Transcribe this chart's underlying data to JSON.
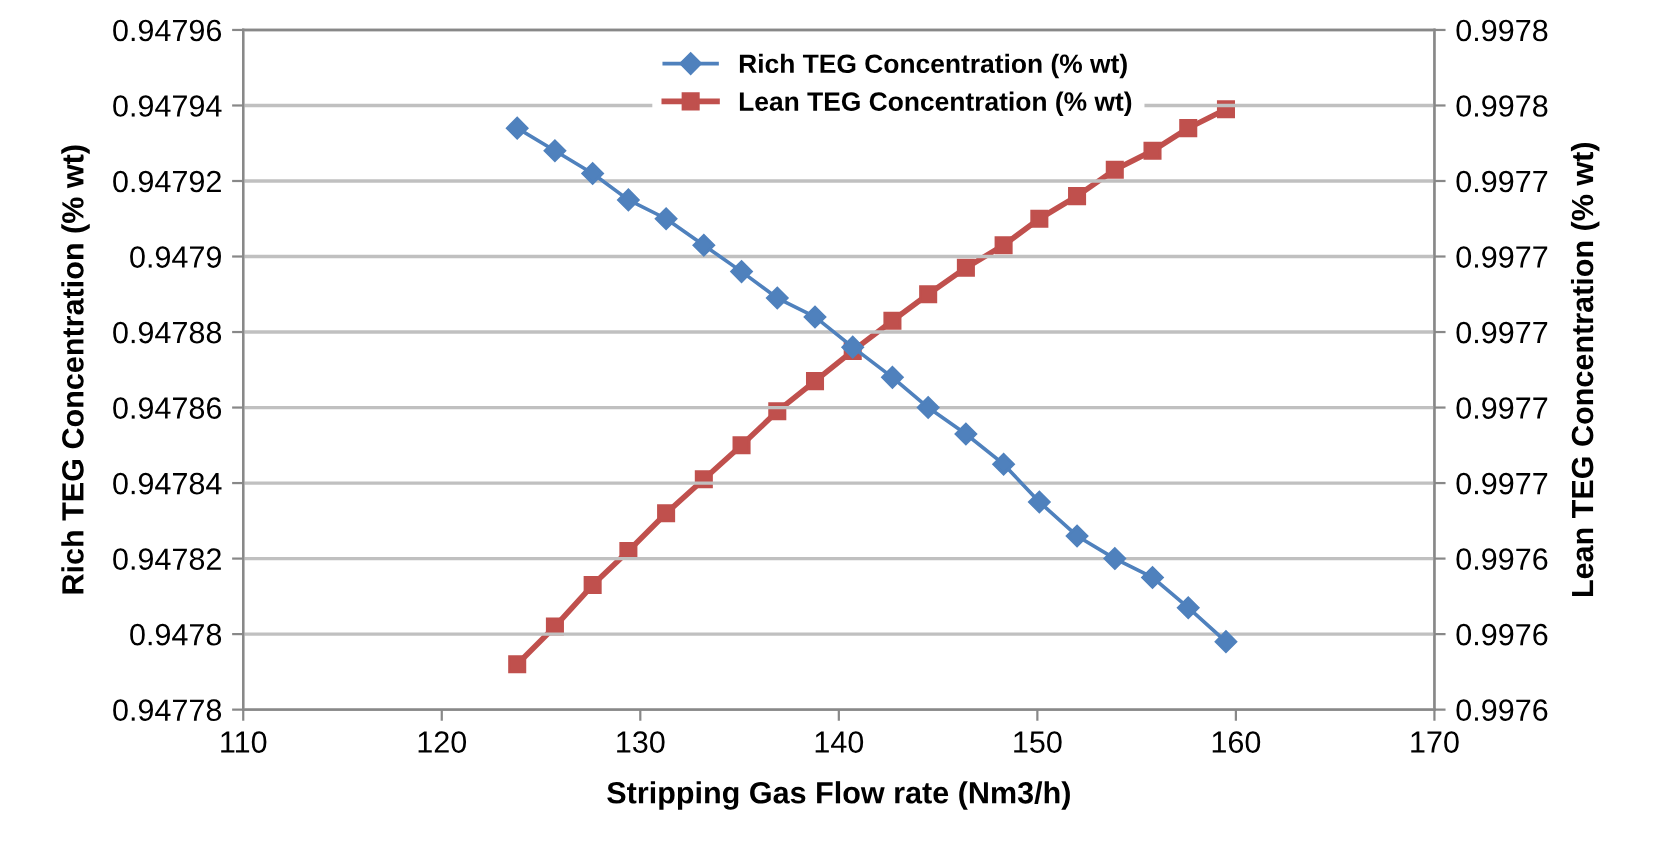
{
  "chart_data": {
    "type": "line",
    "xlabel": "Stripping Gas Flow rate (Nm3/h)",
    "ylabel": "Rich TEG Concentration (% wt)",
    "y2label": "Lean TEG Concentration (% wt)",
    "xlim": [
      110,
      170
    ],
    "xticks": [
      110,
      120,
      130,
      140,
      150,
      160,
      170
    ],
    "ylim": [
      0.94778,
      0.94796
    ],
    "yticks": [
      0.94778,
      0.9478,
      0.94782,
      0.94784,
      0.94786,
      0.94788,
      0.9479,
      0.94792,
      0.94794,
      0.94796
    ],
    "y2lim": [
      0.9976,
      0.99778
    ],
    "y2ticks": [
      {
        "value": 0.9976,
        "label": "0.9976"
      },
      {
        "value": 0.99762,
        "label": "0.9976"
      },
      {
        "value": 0.99764,
        "label": "0.9976"
      },
      {
        "value": 0.99766,
        "label": "0.9977"
      },
      {
        "value": 0.99768,
        "label": "0.9977"
      },
      {
        "value": 0.9977,
        "label": "0.9977"
      },
      {
        "value": 0.99772,
        "label": "0.9977"
      },
      {
        "value": 0.99774,
        "label": "0.9977"
      },
      {
        "value": 0.99776,
        "label": "0.9978"
      },
      {
        "value": 0.99778,
        "label": "0.9978"
      }
    ],
    "grid": "y",
    "legend": "top",
    "x": [
      123.8,
      125.7,
      127.6,
      129.4,
      131.3,
      133.2,
      135.1,
      136.9,
      138.8,
      140.7,
      142.7,
      144.5,
      146.4,
      148.3,
      150.1,
      152.0,
      153.9,
      155.8,
      157.6,
      159.5
    ],
    "series": [
      {
        "name": "Rich TEG Concentration (% wt)",
        "color": "#4f81bd",
        "marker": "diamond",
        "values": [
          0.947934,
          0.947928,
          0.947922,
          0.947915,
          0.94791,
          0.947903,
          0.947896,
          0.947889,
          0.947884,
          0.947876,
          0.947868,
          0.94786,
          0.947853,
          0.947845,
          0.947835,
          0.947826,
          0.94782,
          0.947815,
          0.947807,
          0.947798
        ]
      },
      {
        "name": "Lean TEG Concentration (% wt)",
        "color": "#c0504d",
        "marker": "square",
        "axis": "y2",
        "values": [
          0.997612,
          0.997622,
          0.997633,
          0.997642,
          0.997652,
          0.997661,
          0.99767,
          0.997679,
          0.997687,
          0.997695,
          0.997703,
          0.99771,
          0.997717,
          0.997723,
          0.99773,
          0.997736,
          0.997743,
          0.997748,
          0.997754,
          0.997759
        ]
      }
    ]
  }
}
